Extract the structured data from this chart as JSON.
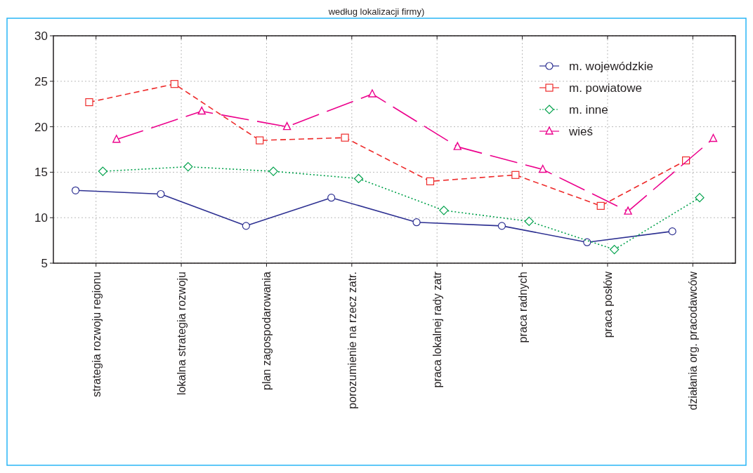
{
  "chart_data": {
    "type": "line",
    "title": "według lokalizacji firmy)",
    "categories": [
      "strategia rozwoju regionu",
      "lokalna strategia rozwoju",
      "plan zagospodarowania",
      "porozumienie na rzecz zatr.",
      "praca lokalnej rady zatr",
      "praca radnych",
      "praca posłów",
      "działania org. pracodawców"
    ],
    "series": [
      {
        "name": "m. wojewódzkie",
        "color": "#2e3192",
        "marker": "circle",
        "line_style": "solid",
        "values": [
          13.0,
          12.6,
          9.1,
          12.2,
          9.5,
          9.1,
          7.3,
          8.5
        ]
      },
      {
        "name": "m. powiatowe",
        "color": "#ee2b2b",
        "marker": "square",
        "line_style": "dashed",
        "values": [
          22.7,
          24.7,
          18.5,
          18.8,
          14.0,
          14.7,
          11.3,
          16.3
        ]
      },
      {
        "name": "m. inne",
        "color": "#00a14b",
        "marker": "diamond",
        "line_style": "dotted",
        "values": [
          15.1,
          15.6,
          15.1,
          14.3,
          10.8,
          9.6,
          6.5,
          12.2
        ]
      },
      {
        "name": "wieś",
        "color": "#ec008c",
        "marker": "triangle",
        "line_style": "longdash",
        "values": [
          18.6,
          21.7,
          20.0,
          23.6,
          17.8,
          15.3,
          10.7,
          18.7
        ]
      }
    ],
    "ylim": [
      5,
      30
    ],
    "yticks": [
      5,
      10,
      15,
      20,
      25,
      30
    ],
    "grid": true,
    "legend": "top right"
  }
}
